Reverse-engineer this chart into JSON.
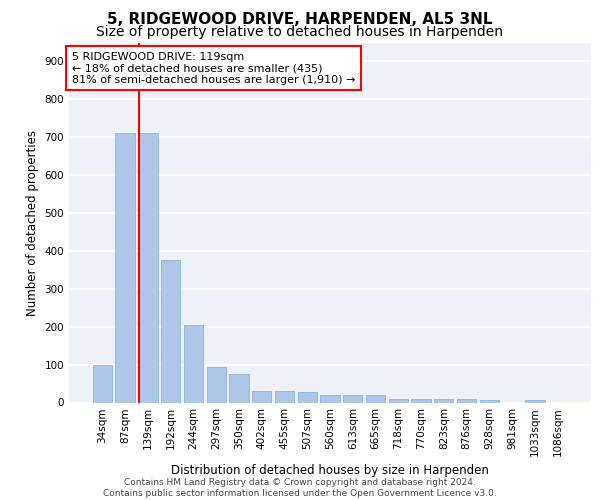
{
  "title": "5, RIDGEWOOD DRIVE, HARPENDEN, AL5 3NL",
  "subtitle": "Size of property relative to detached houses in Harpenden",
  "xlabel": "Distribution of detached houses by size in Harpenden",
  "ylabel": "Number of detached properties",
  "categories": [
    "34sqm",
    "87sqm",
    "139sqm",
    "192sqm",
    "244sqm",
    "297sqm",
    "350sqm",
    "402sqm",
    "455sqm",
    "507sqm",
    "560sqm",
    "613sqm",
    "665sqm",
    "718sqm",
    "770sqm",
    "823sqm",
    "876sqm",
    "928sqm",
    "981sqm",
    "1033sqm",
    "1086sqm"
  ],
  "values": [
    100,
    710,
    710,
    375,
    205,
    95,
    75,
    30,
    30,
    28,
    20,
    20,
    20,
    8,
    8,
    8,
    8,
    7,
    0,
    7,
    0
  ],
  "bar_color": "#aec6e8",
  "bar_edge_color": "#7aafd4",
  "vline_color": "red",
  "vline_x": 1.62,
  "ylim": [
    0,
    950
  ],
  "yticks": [
    0,
    100,
    200,
    300,
    400,
    500,
    600,
    700,
    800,
    900
  ],
  "annotation_text": "5 RIDGEWOOD DRIVE: 119sqm\n← 18% of detached houses are smaller (435)\n81% of semi-detached houses are larger (1,910) →",
  "annotation_box_color": "white",
  "annotation_box_edge_color": "red",
  "footer_text": "Contains HM Land Registry data © Crown copyright and database right 2024.\nContains public sector information licensed under the Open Government Licence v3.0.",
  "bg_color": "#eef2f8",
  "grid_color": "white",
  "title_fontsize": 11,
  "subtitle_fontsize": 10,
  "axis_label_fontsize": 8.5,
  "tick_fontsize": 7.5,
  "annotation_fontsize": 8,
  "footer_fontsize": 6.5
}
